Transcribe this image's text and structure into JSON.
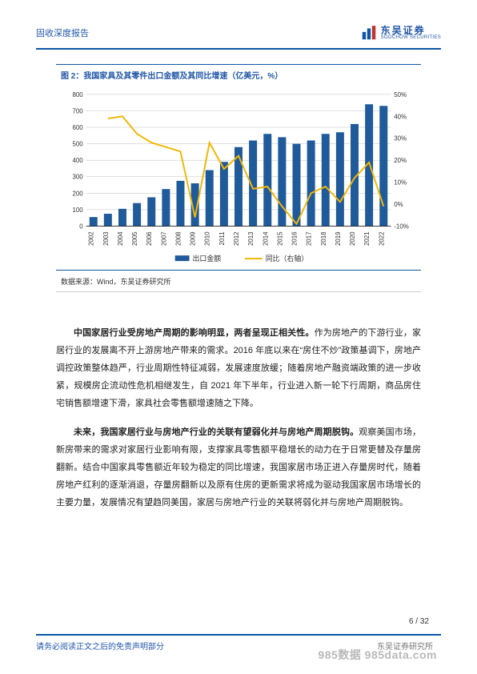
{
  "header": {
    "left": "固收深度报告",
    "logo_cn": "东吴证券",
    "logo_en": "SOOCHOW SECURITIES"
  },
  "chart": {
    "title": "图 2：我国家具及其零件出口金额及其同比增速（亿美元，%）",
    "source": "数据来源：Wind，东吴证券研究所",
    "type": "bar+line",
    "background_color": "#ffffff",
    "grid_color": "#bfbfbf",
    "axis_color": "#000000",
    "bar_color": "#1f5a9a",
    "line_color": "#f2b705",
    "bar_width": 0.55,
    "line_width": 2,
    "title_fontsize": 10,
    "label_fontsize": 8,
    "tick_fontsize": 8,
    "categories": [
      "2002",
      "2003",
      "2004",
      "2005",
      "2006",
      "2007",
      "2008",
      "2009",
      "2010",
      "2011",
      "2012",
      "2013",
      "2014",
      "2015",
      "2016",
      "2017",
      "2018",
      "2019",
      "2020",
      "2021",
      "2022"
    ],
    "left_axis": {
      "label": "",
      "min": 0,
      "max": 800,
      "tick_step": 100
    },
    "right_axis": {
      "label": "",
      "min": -10,
      "max": 50,
      "tick_step": 10
    },
    "series": {
      "bar": {
        "name": "出口金额",
        "axis": "left",
        "values": [
          55,
          75,
          105,
          140,
          175,
          225,
          275,
          260,
          340,
          390,
          480,
          520,
          560,
          540,
          500,
          520,
          560,
          570,
          620,
          740,
          730
        ]
      },
      "line": {
        "name": "同比（右轴）",
        "axis": "right",
        "values": [
          null,
          39,
          40,
          32,
          28,
          26,
          24,
          -6,
          28,
          16,
          22,
          7,
          8,
          -1,
          -9,
          5,
          8,
          1,
          12,
          19,
          -1
        ]
      }
    },
    "legend": {
      "bar": "出口金额",
      "line": "同比（右轴）"
    }
  },
  "paragraphs": [
    {
      "bold_lead": "中国家居行业受房地产周期的影响明显，两者呈现正相关性。",
      "rest": "作为房地产的下游行业，家居行业的发展离不开上游房地产带来的需求。2016 年底以来在“房住不炒”政策基调下，房地产调控政策整体趋严，行业周期性特征减弱，发展速度放缓；随着房地产融资端政策的进一步收紧，规模房企流动性危机相继发生，自 2021 年下半年，行业进入新一轮下行周期，商品房住宅销售额增速下滑，家具社会零售额增速随之下降。"
    },
    {
      "bold_lead": "未来，我国家居行业与房地产行业的关联有望弱化并与房地产周期脱钩。",
      "rest": "观察美国市场，新房带来的需求对家居行业影响有限，支撑家具零售额平稳增长的动力在于日常更替及存量房翻新。结合中国家具零售额近年较为稳定的同比增速，我国家居市场正进入存量房时代，随着房地产红利的逐渐消退，存量房翻新以及原有住房的更新需求将成为驱动我国家居市场增长的主要力量，发展情况有望趋同美国，家居与房地产行业的关联将弱化并与房地产周期脱钩。"
    }
  ],
  "footer": {
    "page": "6 / 32",
    "disclaimer": "请务必阅读正文之后的免责声明部分",
    "research": "东吴证券研究所",
    "watermark": "985数据 985data.com"
  }
}
